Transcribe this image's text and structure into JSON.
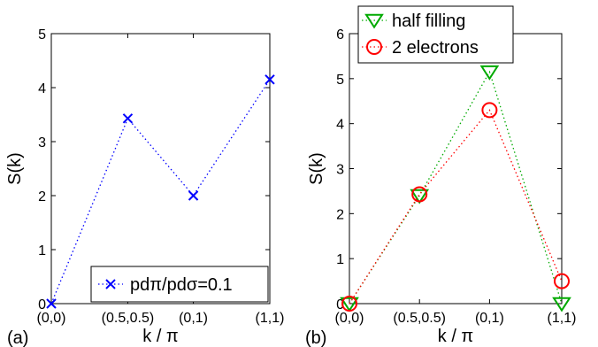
{
  "chart_data": [
    {
      "type": "line",
      "panel_label": "(a)",
      "xlabel": "k / π",
      "ylabel": "S(k)",
      "categories": [
        "(0,0)",
        "(0.5,0.5)",
        "(0,1)",
        "(1,1)"
      ],
      "ylim": [
        0,
        5
      ],
      "yticks": [
        "0",
        "1",
        "2",
        "3",
        "4",
        "5"
      ],
      "grid": false,
      "legend_position": "bottom-right",
      "series": [
        {
          "name": "pdπ/pdσ=0.1",
          "marker": "x",
          "color": "#0000ff",
          "values": [
            0,
            3.43,
            2.0,
            4.15
          ]
        }
      ]
    },
    {
      "type": "line",
      "panel_label": "(b)",
      "xlabel": "k / π",
      "ylabel": "S(k)",
      "categories": [
        "(0,0)",
        "(0.5,0.5)",
        "(0,1)",
        "(1,1)"
      ],
      "ylim": [
        0,
        6
      ],
      "yticks": [
        "0",
        "1",
        "2",
        "3",
        "4",
        "5",
        "6"
      ],
      "grid": false,
      "legend_position": "top-left",
      "series": [
        {
          "name": "half filling",
          "marker": "triangle-down",
          "color": "#00aa00",
          "values": [
            0,
            2.4,
            5.15,
            0
          ]
        },
        {
          "name": "2 electrons",
          "marker": "circle",
          "color": "#ff0000",
          "values": [
            0,
            2.43,
            4.3,
            0.5
          ]
        }
      ]
    }
  ]
}
